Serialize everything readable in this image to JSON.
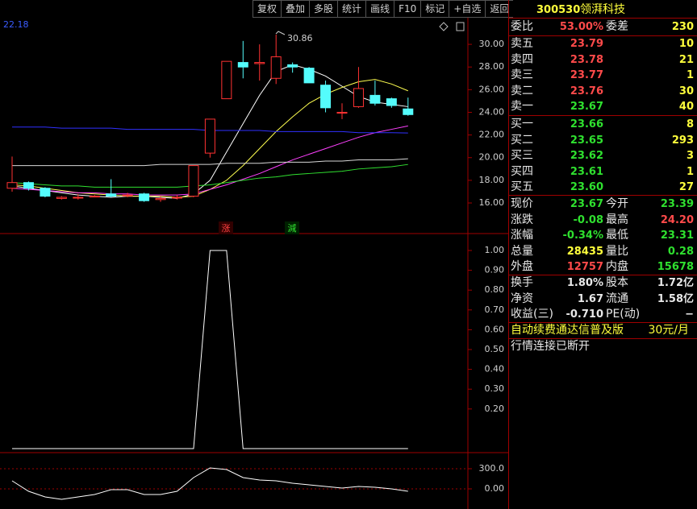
{
  "toolbar": [
    "复权",
    "叠加",
    "多股",
    "统计",
    "画线",
    "F10",
    "标记",
    "+自选",
    "返回"
  ],
  "chart_data": [
    {
      "type": "candlestick",
      "open": [
        17.3,
        17.8,
        17.3,
        16.4,
        16.5,
        16.6,
        16.8,
        16.7,
        16.8,
        16.3,
        16.5,
        16.6,
        20.4,
        25.2,
        28.4,
        28.3,
        27.0,
        28.2,
        27.9,
        26.4,
        24.0,
        24.5,
        25.5,
        25.2,
        24.3
      ],
      "high": [
        20.1,
        17.9,
        17.4,
        16.6,
        16.8,
        16.7,
        18.1,
        16.9,
        16.9,
        16.6,
        16.7,
        19.3,
        23.4,
        28.5,
        30.3,
        30.0,
        30.86,
        28.4,
        28.0,
        26.8,
        24.8,
        28.0,
        26.8,
        25.3,
        25.3
      ],
      "low": [
        17.0,
        17.1,
        16.5,
        16.3,
        16.3,
        16.5,
        16.5,
        16.5,
        16.1,
        16.1,
        16.3,
        16.5,
        20.0,
        25.2,
        27.0,
        26.8,
        26.5,
        27.5,
        26.6,
        24.0,
        23.4,
        24.4,
        24.6,
        24.4,
        23.7
      ],
      "close": [
        17.8,
        17.3,
        16.6,
        16.5,
        16.5,
        16.6,
        16.6,
        16.7,
        16.2,
        16.4,
        16.5,
        19.3,
        23.4,
        28.5,
        28.0,
        28.4,
        28.9,
        28.0,
        26.6,
        24.4,
        24.0,
        26.1,
        24.8,
        24.6,
        23.8
      ],
      "up_color": "#ff3232",
      "down_color": "#54fcfc",
      "lines": [
        {
          "color": "#ffffff",
          "values": [
            17.5,
            17.3,
            17.1,
            16.9,
            16.7,
            16.6,
            16.5,
            16.6,
            16.6,
            16.5,
            16.4,
            16.8,
            18.0,
            20.5,
            23.0,
            25.5,
            27.6,
            28.2,
            27.8,
            27.2,
            26.3,
            25.4,
            24.9,
            24.7,
            24.5
          ]
        },
        {
          "color": "#ffff50",
          "values": [
            17.6,
            17.5,
            17.3,
            17.1,
            16.9,
            16.8,
            16.7,
            16.6,
            16.6,
            16.6,
            16.5,
            16.6,
            17.2,
            18.0,
            19.3,
            20.8,
            22.3,
            23.6,
            24.8,
            25.6,
            26.2,
            26.7,
            26.9,
            26.5,
            25.9
          ]
        },
        {
          "color": "#ff40ff",
          "values": [
            17.3,
            17.2,
            17.1,
            17.0,
            16.9,
            16.9,
            16.8,
            16.8,
            16.7,
            16.7,
            16.7,
            16.8,
            17.2,
            17.6,
            18.1,
            18.6,
            19.2,
            19.8,
            20.3,
            20.8,
            21.3,
            21.8,
            22.2,
            22.5,
            22.8
          ]
        },
        {
          "color": "#30e030",
          "values": [
            17.8,
            17.7,
            17.6,
            17.5,
            17.5,
            17.4,
            17.4,
            17.4,
            17.4,
            17.4,
            17.4,
            17.5,
            17.6,
            17.8,
            18.0,
            18.2,
            18.3,
            18.5,
            18.6,
            18.7,
            18.8,
            19.0,
            19.1,
            19.2,
            19.4
          ]
        },
        {
          "color": "#d8d8d8",
          "values": [
            19.3,
            19.3,
            19.3,
            19.3,
            19.3,
            19.3,
            19.3,
            19.3,
            19.3,
            19.4,
            19.4,
            19.4,
            19.4,
            19.5,
            19.5,
            19.5,
            19.6,
            19.6,
            19.6,
            19.7,
            19.7,
            19.8,
            19.8,
            19.8,
            19.9
          ]
        },
        {
          "color": "#3030ff",
          "values": [
            22.7,
            22.7,
            22.7,
            22.6,
            22.6,
            22.6,
            22.6,
            22.5,
            22.5,
            22.5,
            22.5,
            22.5,
            22.4,
            22.4,
            22.4,
            22.4,
            22.3,
            22.3,
            22.3,
            22.3,
            22.3,
            22.2,
            22.2,
            22.2,
            22.18
          ]
        }
      ],
      "ylim": [
        13.3,
        32.35
      ],
      "yticks": [
        {
          "value": 16,
          "label": "16.00"
        },
        {
          "value": 18,
          "label": "18.00"
        },
        {
          "value": 20,
          "label": "20.00"
        },
        {
          "value": 22,
          "label": "22.00"
        },
        {
          "value": 24,
          "label": "24.00"
        },
        {
          "value": 26,
          "label": "26.00"
        },
        {
          "value": 28,
          "label": "28.00"
        },
        {
          "value": 30,
          "label": "30.00"
        }
      ],
      "annotations": [
        "22.18",
        "30.86",
        "涨",
        "減"
      ]
    },
    {
      "type": "line",
      "color": "#ffffff",
      "values": [
        0,
        0,
        0,
        0,
        0,
        0,
        0,
        0,
        0,
        0,
        0,
        0,
        1,
        1,
        0,
        0,
        0,
        0,
        0,
        0,
        0,
        0,
        0,
        0,
        0
      ],
      "ylim": [
        -0.0203,
        1.0854
      ],
      "yticks": [
        {
          "value": 0.2,
          "label": "0.20"
        },
        {
          "value": 0.3,
          "label": "0.30"
        },
        {
          "value": 0.4,
          "label": "0.40"
        },
        {
          "value": 0.5,
          "label": "0.50"
        },
        {
          "value": 0.6,
          "label": "0.60"
        },
        {
          "value": 0.7,
          "label": "0.70"
        },
        {
          "value": 0.8,
          "label": "0.80"
        },
        {
          "value": 0.9,
          "label": "0.90"
        },
        {
          "value": 1,
          "label": "1.00"
        }
      ]
    },
    {
      "type": "line",
      "color": "#ffffff",
      "values": [
        120,
        -36,
        -120,
        -156,
        -120,
        -84,
        -12,
        -12,
        -84,
        -84,
        -36,
        168,
        312,
        288,
        168,
        132,
        120,
        84,
        60,
        36,
        12,
        36,
        24,
        0,
        -36
      ],
      "ylim": [
        -300,
        540
      ],
      "grid": true,
      "yticks": [
        {
          "value": 0,
          "label": "0.00"
        },
        {
          "value": 300,
          "label": "300.0"
        }
      ]
    }
  ],
  "quote": {
    "code": "300530",
    "name": "领湃科技",
    "summary": [
      {
        "label": "委比",
        "value": "53.00%"
      },
      {
        "label": "委差",
        "value": "230"
      }
    ],
    "asks": [
      {
        "label": "卖五",
        "price": "23.79",
        "volume": "10"
      },
      {
        "label": "卖四",
        "price": "23.78",
        "volume": "21"
      },
      {
        "label": "卖三",
        "price": "23.77",
        "volume": "1"
      },
      {
        "label": "卖二",
        "price": "23.76",
        "volume": "30"
      },
      {
        "label": "卖一",
        "price": "23.67",
        "volume": "40"
      }
    ],
    "bids": [
      {
        "label": "买一",
        "price": "23.66",
        "volume": "8"
      },
      {
        "label": "买二",
        "price": "23.65",
        "volume": "293"
      },
      {
        "label": "买三",
        "price": "23.62",
        "volume": "3"
      },
      {
        "label": "买四",
        "price": "23.61",
        "volume": "1"
      },
      {
        "label": "买五",
        "price": "23.60",
        "volume": "27"
      }
    ],
    "stats": [
      [
        {
          "label": "现价",
          "value": "23.67"
        },
        {
          "label": "今开",
          "value": "23.39"
        }
      ],
      [
        {
          "label": "涨跌",
          "value": "-0.08"
        },
        {
          "label": "最高",
          "value": "24.20"
        }
      ],
      [
        {
          "label": "涨幅",
          "value": "-0.34%"
        },
        {
          "label": "最低",
          "value": "23.31"
        }
      ],
      [
        {
          "label": "总量",
          "value": "28435"
        },
        {
          "label": "量比",
          "value": "0.28"
        }
      ],
      [
        {
          "label": "外盘",
          "value": "12757"
        },
        {
          "label": "内盘",
          "value": "15678"
        }
      ]
    ],
    "fundamentals": [
      [
        {
          "label": "换手",
          "value": "1.80%"
        },
        {
          "label": "股本",
          "value": "1.72亿"
        }
      ],
      [
        {
          "label": "净资",
          "value": "1.67"
        },
        {
          "label": "流通",
          "value": "1.58亿"
        }
      ],
      [
        {
          "label": "收益(三)",
          "value": "-0.710"
        },
        {
          "label": "PE(动)",
          "value": "−"
        }
      ]
    ],
    "promo": {
      "text": "自动续费通达信普及版",
      "price": "30元/月"
    },
    "status": "行情连接已断开"
  }
}
